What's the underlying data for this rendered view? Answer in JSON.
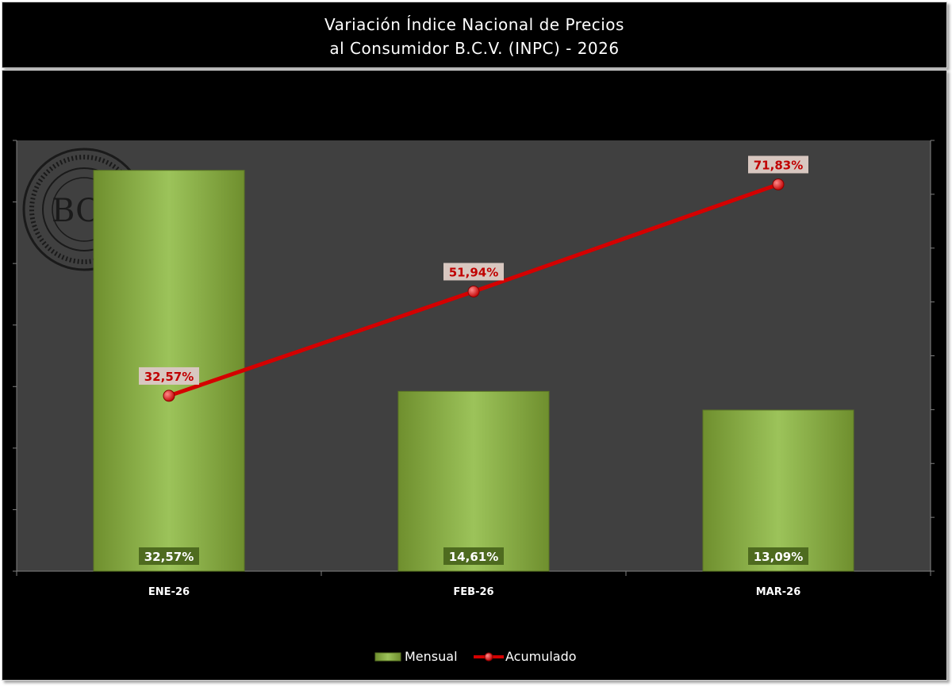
{
  "title": {
    "line1": "Variación Índice Nacional de Precios",
    "line2": "al Consumidor B.C.V. (INPC) - 2026"
  },
  "logo": {
    "text": "BCV",
    "icon": "bcv-seal-icon"
  },
  "colors": {
    "background": "#000000",
    "plot_area": "#404040",
    "bar_light": "#9cc35a",
    "bar_dark": "#6f8f2e",
    "line": "#d40000",
    "label_bg_line": "#d8c7c0",
    "label_bg_bar": "#4e6b1f"
  },
  "chart_data": {
    "type": "bar",
    "categories": [
      "ENE-26",
      "FEB-26",
      "MAR-26"
    ],
    "series": [
      {
        "name": "Mensual",
        "type": "bar",
        "axis": "left",
        "values": [
          32.57,
          14.61,
          13.09
        ],
        "labels": [
          "32,57%",
          "14,61%",
          "13,09%"
        ]
      },
      {
        "name": "Acumulado",
        "type": "line",
        "axis": "right",
        "values": [
          32.57,
          51.94,
          71.83
        ],
        "labels": [
          "32,57%",
          "51,94%",
          "71,83%"
        ]
      }
    ],
    "ylim_left": [
      0,
      35
    ],
    "ylim_right": [
      0,
      80
    ],
    "grid": false,
    "legend_position": "bottom"
  }
}
